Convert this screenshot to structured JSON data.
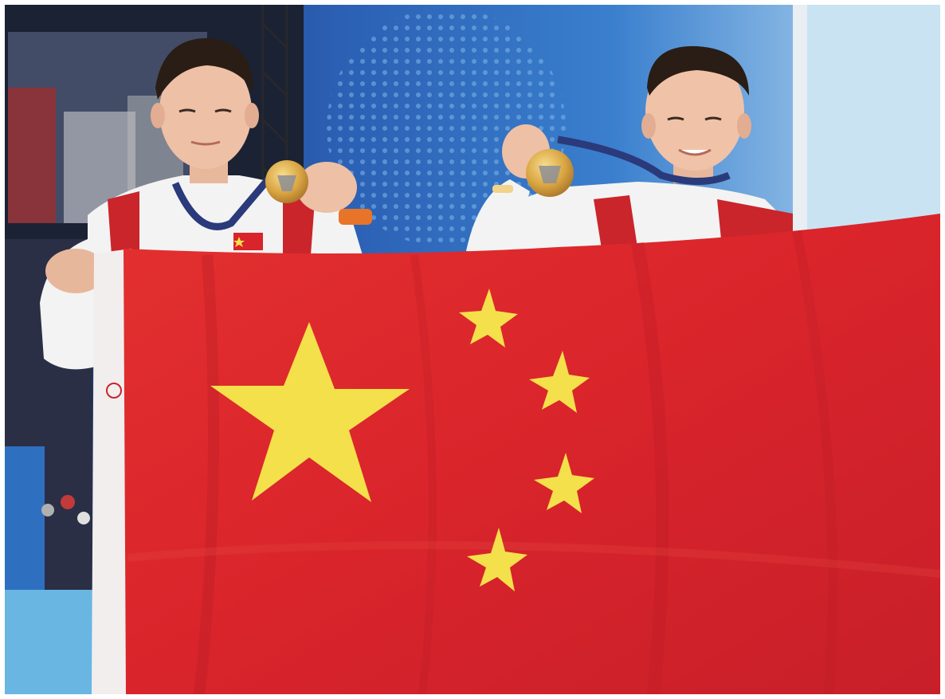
{
  "scene": {
    "subject": "two-athletes-holding-flag-and-medals",
    "colors": {
      "flag_red": "#d9242b",
      "star_yellow": "#f4e04a",
      "jacket_white": "#f3f3f3",
      "jacket_red": "#c9252b",
      "backdrop_blue": "#2b5fb3",
      "backdrop_light_blue": "#5aa6e0",
      "medal_gold": "#d9a441",
      "lanyard_navy": "#2a3a7a"
    },
    "flag_stars": {
      "big": 1,
      "small": 4
    },
    "medals": 2,
    "people": 2
  }
}
